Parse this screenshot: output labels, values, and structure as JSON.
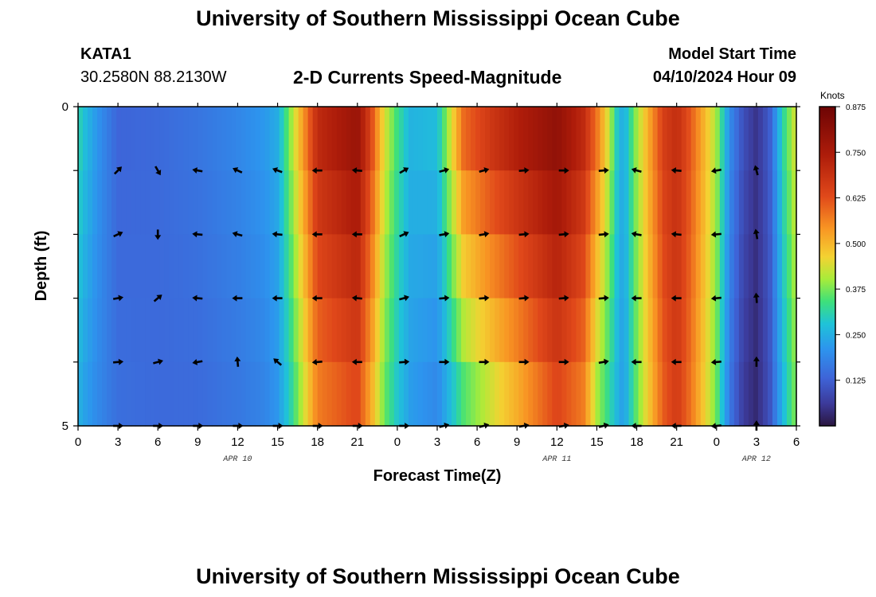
{
  "header": {
    "title": "University of Southern Mississippi Ocean Cube",
    "footer_title": "University of Southern Mississippi Ocean Cube",
    "station": "KATA1",
    "coords": "30.2580N  88.2130W",
    "subtitle": "2-D Currents Speed-Magnitude",
    "model_start_label": "Model Start Time",
    "model_start_value": "04/10/2024 Hour 09"
  },
  "chart_data": {
    "type": "heatmap",
    "title": "2-D Currents Speed-Magnitude",
    "xlabel": "Forecast Time(Z)",
    "ylabel": "Depth (ft)",
    "x_range_hours": [
      0,
      54
    ],
    "y_range": [
      0,
      5
    ],
    "y_ticks": [
      "0",
      "5"
    ],
    "x_ticks": [
      {
        "hour": 0,
        "label": "0"
      },
      {
        "hour": 3,
        "label": "3"
      },
      {
        "hour": 6,
        "label": "6"
      },
      {
        "hour": 9,
        "label": "9"
      },
      {
        "hour": 12,
        "label": "12"
      },
      {
        "hour": 15,
        "label": "15"
      },
      {
        "hour": 18,
        "label": "18"
      },
      {
        "hour": 21,
        "label": "21"
      },
      {
        "hour": 24,
        "label": "0"
      },
      {
        "hour": 27,
        "label": "3"
      },
      {
        "hour": 30,
        "label": "6"
      },
      {
        "hour": 33,
        "label": "9"
      },
      {
        "hour": 36,
        "label": "12"
      },
      {
        "hour": 39,
        "label": "15"
      },
      {
        "hour": 42,
        "label": "18"
      },
      {
        "hour": 45,
        "label": "21"
      },
      {
        "hour": 48,
        "label": "0"
      },
      {
        "hour": 51,
        "label": "3"
      },
      {
        "hour": 54,
        "label": "6"
      }
    ],
    "date_labels": [
      {
        "hour": 12,
        "label": "APR 10"
      },
      {
        "hour": 36,
        "label": "APR 11"
      },
      {
        "hour": 51,
        "label": "APR 12"
      }
    ],
    "colorbar": {
      "units": "Knots",
      "min": 0.0,
      "max": 0.875,
      "ticks": [
        "0.875",
        "0.750",
        "0.625",
        "0.500",
        "0.375",
        "0.250",
        "0.125"
      ],
      "tick_values": [
        0.875,
        0.75,
        0.625,
        0.5,
        0.375,
        0.25,
        0.125
      ]
    },
    "speed_profile": {
      "hours": [
        0,
        0.6,
        1.5,
        3,
        6,
        9,
        12,
        14,
        15,
        16,
        17,
        18,
        21,
        22,
        23,
        24,
        25,
        27,
        29,
        31,
        33,
        36,
        38,
        39,
        40,
        40.5,
        41,
        42,
        44,
        45,
        46,
        48,
        49,
        50,
        51,
        52,
        53,
        54
      ],
      "surface": [
        0.32,
        0.27,
        0.21,
        0.13,
        0.14,
        0.16,
        0.19,
        0.22,
        0.25,
        0.4,
        0.56,
        0.72,
        0.8,
        0.66,
        0.45,
        0.34,
        0.26,
        0.28,
        0.62,
        0.7,
        0.76,
        0.82,
        0.72,
        0.6,
        0.42,
        0.3,
        0.24,
        0.4,
        0.66,
        0.7,
        0.62,
        0.4,
        0.2,
        0.1,
        0.05,
        0.12,
        0.32,
        0.45
      ],
      "bottom": [
        0.25,
        0.22,
        0.19,
        0.15,
        0.14,
        0.14,
        0.16,
        0.18,
        0.21,
        0.3,
        0.42,
        0.55,
        0.62,
        0.5,
        0.36,
        0.28,
        0.22,
        0.18,
        0.32,
        0.4,
        0.48,
        0.62,
        0.55,
        0.38,
        0.3,
        0.26,
        0.22,
        0.36,
        0.6,
        0.66,
        0.58,
        0.36,
        0.16,
        0.06,
        0.03,
        0.1,
        0.26,
        0.38
      ]
    },
    "arrows": {
      "row_depths": [
        1,
        2,
        3,
        4,
        5
      ],
      "col_hours": [
        3,
        6,
        9,
        12,
        15,
        18,
        21,
        24.5,
        27.5,
        30.5,
        33.5,
        36.5,
        39.5,
        42,
        45,
        48,
        51
      ],
      "angles": [
        [
          45,
          300,
          170,
          155,
          160,
          180,
          175,
          30,
          15,
          15,
          5,
          0,
          5,
          165,
          175,
          190,
          105
        ],
        [
          25,
          270,
          175,
          165,
          175,
          180,
          180,
          25,
          10,
          10,
          5,
          5,
          5,
          170,
          175,
          185,
          100
        ],
        [
          10,
          40,
          175,
          180,
          180,
          180,
          175,
          15,
          5,
          5,
          5,
          5,
          5,
          180,
          180,
          185,
          95
        ],
        [
          5,
          15,
          190,
          95,
          140,
          185,
          180,
          5,
          0,
          0,
          0,
          0,
          10,
          180,
          180,
          185,
          90
        ],
        [
          0,
          0,
          0,
          0,
          0,
          0,
          0,
          0,
          15,
          15,
          10,
          10,
          15,
          180,
          180,
          185,
          90
        ]
      ]
    },
    "colors": {
      "frame": "#000000",
      "arrow": "#000000"
    }
  }
}
